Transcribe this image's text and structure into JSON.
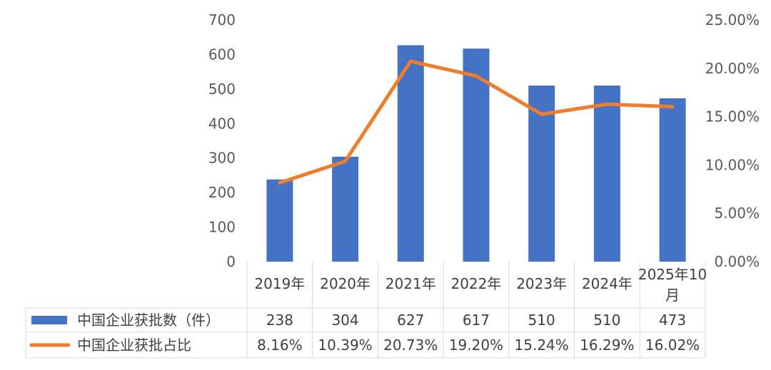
{
  "chart_data": {
    "type": "bar",
    "categories": [
      "2019年",
      "2020年",
      "2021年",
      "2022年",
      "2023年",
      "2024年",
      "2025年10月"
    ],
    "series": [
      {
        "name": "中国企业获批数（件）",
        "type": "bar",
        "axis": "left",
        "values": [
          238,
          304,
          627,
          617,
          510,
          510,
          473
        ],
        "labels": [
          "238",
          "304",
          "627",
          "617",
          "510",
          "510",
          "473"
        ],
        "color": "#4472c4"
      },
      {
        "name": "中国企业获批占比",
        "type": "line",
        "axis": "right",
        "values": [
          8.16,
          10.39,
          20.73,
          19.2,
          15.24,
          16.29,
          16.02
        ],
        "labels": [
          "8.16%",
          "10.39%",
          "20.73%",
          "19.20%",
          "15.24%",
          "16.29%",
          "16.02%"
        ],
        "color": "#ed7d31"
      }
    ],
    "yleft": {
      "ylim": [
        0,
        700
      ],
      "ticks": [
        "0",
        "100",
        "200",
        "300",
        "400",
        "500",
        "600",
        "700"
      ]
    },
    "yright": {
      "ylim": [
        0,
        25
      ],
      "ticks": [
        "0.00%",
        "5.00%",
        "10.00%",
        "15.00%",
        "20.00%",
        "25.00%"
      ]
    },
    "grid": false,
    "legend": "data-table"
  }
}
